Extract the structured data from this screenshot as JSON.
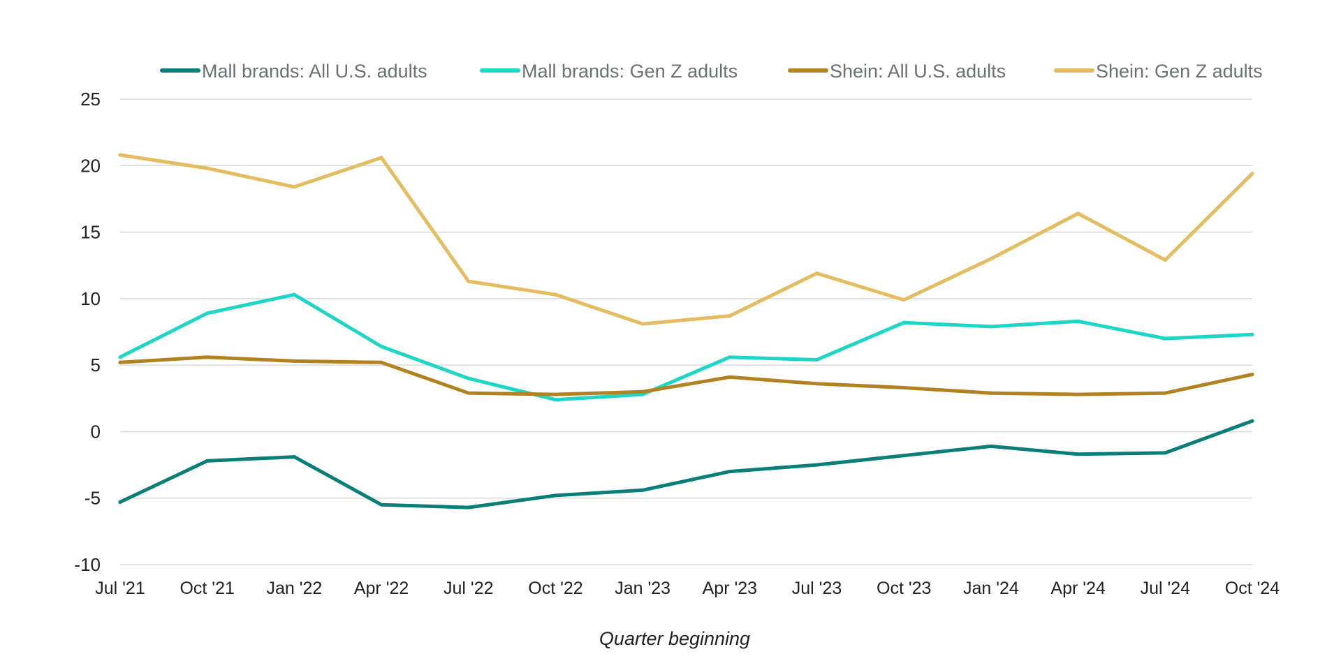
{
  "chart_data": {
    "type": "line",
    "xlabel": "Quarter beginning",
    "ylabel": "",
    "ylim": [
      -10,
      25
    ],
    "yticks": [
      25,
      20,
      15,
      10,
      5,
      0,
      -5,
      -10
    ],
    "grid": true,
    "legend_position": "top",
    "categories": [
      "Jul '21",
      "Oct '21",
      "Jan '22",
      "Apr '22",
      "Jul '22",
      "Oct '22",
      "Jan '23",
      "Apr '23",
      "Jul '23",
      "Oct '23",
      "Jan '24",
      "Apr '24",
      "Jul '24",
      "Oct '24"
    ],
    "series": [
      {
        "name": "Mall brands: All U.S. adults",
        "color": "#0a7f7a",
        "values": [
          -5.3,
          -2.2,
          -1.9,
          -5.5,
          -5.7,
          -4.8,
          -4.4,
          -3.0,
          -2.5,
          -1.8,
          -1.1,
          -1.7,
          -1.6,
          0.8
        ]
      },
      {
        "name": "Mall brands: Gen Z adults",
        "color": "#1dd6c6",
        "values": [
          5.6,
          8.9,
          10.3,
          6.4,
          4.0,
          2.4,
          2.8,
          5.6,
          5.4,
          8.2,
          7.9,
          8.3,
          7.0,
          7.3
        ]
      },
      {
        "name": "Shein: All U.S. adults",
        "color": "#b38220",
        "values": [
          5.2,
          5.6,
          5.3,
          5.2,
          2.9,
          2.8,
          3.0,
          4.1,
          3.6,
          3.3,
          2.9,
          2.8,
          2.9,
          4.3
        ]
      },
      {
        "name": "Shein: Gen Z adults",
        "color": "#e5bc60",
        "values": [
          20.8,
          19.8,
          18.4,
          20.6,
          11.3,
          10.3,
          8.1,
          8.7,
          11.9,
          9.9,
          13.0,
          16.4,
          12.9,
          19.4
        ]
      }
    ]
  }
}
